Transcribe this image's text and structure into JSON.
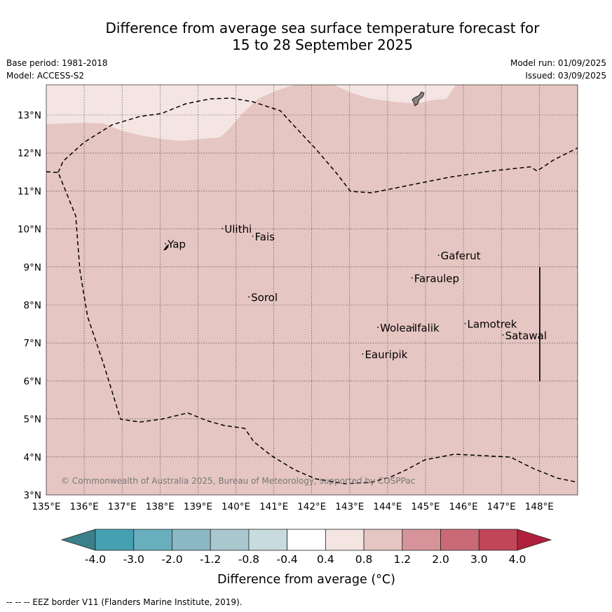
{
  "title_line1": "Difference from average sea surface temperature forecast for",
  "title_line2": "15 to 28 September 2025",
  "base_period": "Base period: 1981-2018",
  "model": "Model: ACCESS-S2",
  "model_run": "Model run: 01/09/2025",
  "issued": "Issued: 03/09/2025",
  "copyright": "© Commonwealth of Australia 2025, Bureau of Meteorology, supported by COSPPac",
  "footer": "--  --  -- EEZ border V11 (Flanders Marine Institute, 2019).",
  "colorbar_title": "Difference from average (°C)",
  "map": {
    "lon_range": [
      135,
      149
    ],
    "lat_range": [
      3,
      13.8
    ],
    "lon_ticks": [
      "135°E",
      "136°E",
      "137°E",
      "138°E",
      "139°E",
      "140°E",
      "141°E",
      "142°E",
      "143°E",
      "144°E",
      "145°E",
      "146°E",
      "147°E",
      "148°E"
    ],
    "lat_ticks": [
      "3°N",
      "4°N",
      "5°N",
      "6°N",
      "7°N",
      "8°N",
      "9°N",
      "10°N",
      "11°N",
      "12°N",
      "13°N"
    ],
    "places": [
      {
        "name": "Yap",
        "lon": 138.2,
        "lat": 9.5
      },
      {
        "name": "Ulithi",
        "lon": 139.7,
        "lat": 9.9
      },
      {
        "name": "Fais",
        "lon": 140.5,
        "lat": 9.7
      },
      {
        "name": "Gaferut",
        "lon": 145.4,
        "lat": 9.2
      },
      {
        "name": "Faraulep",
        "lon": 144.7,
        "lat": 8.6
      },
      {
        "name": "Sorol",
        "lon": 140.4,
        "lat": 8.1
      },
      {
        "name": "Lamotrek",
        "lon": 146.1,
        "lat": 7.4
      },
      {
        "name": "Woleai",
        "lon": 143.8,
        "lat": 7.3
      },
      {
        "name": "Ifalik",
        "lon": 144.7,
        "lat": 7.3
      },
      {
        "name": "Satawal",
        "lon": 147.1,
        "lat": 7.1
      },
      {
        "name": "Eauripik",
        "lon": 143.4,
        "lat": 6.6
      }
    ],
    "colors": {
      "base": "#e6c6c2",
      "light": "#f4e5e3",
      "land": "#8a8480"
    }
  },
  "colorbar": {
    "tick_labels": [
      "-4.0",
      "-3.0",
      "-2.0",
      "-1.2",
      "-0.8",
      "-0.4",
      "0.4",
      "0.8",
      "1.2",
      "2.0",
      "3.0",
      "4.0"
    ],
    "colors": [
      "#3a7f8a",
      "#45a0b2",
      "#68aebd",
      "#8ab8c4",
      "#a9c8ce",
      "#c8dbde",
      "#ffffff",
      "#f4e5e3",
      "#e6c6c2",
      "#d6949a",
      "#ca6a76",
      "#c04658",
      "#b0203c"
    ]
  }
}
